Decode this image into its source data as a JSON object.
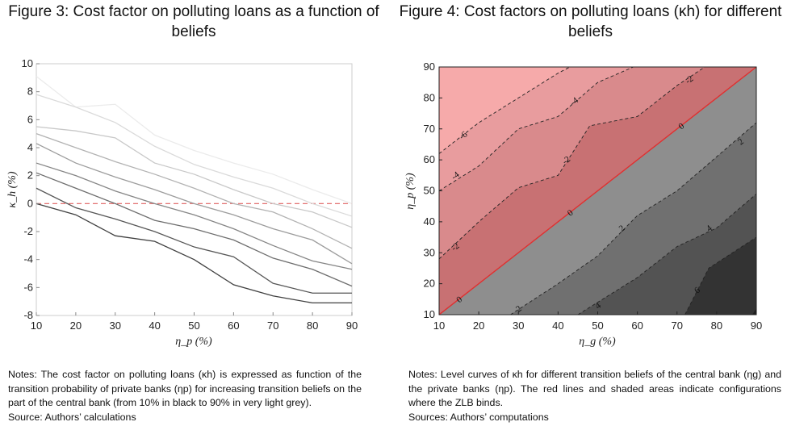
{
  "figure_left": {
    "title": "Figure 3: Cost factor on polluting loans as a function of beliefs",
    "notes": [
      "Notes: The cost factor on polluting loans (κh) is expressed as function of the transition probability of private banks (ηp) for increasing transition beliefs on the part of the central bank (from 10% in black to 90% in very light grey).",
      "Source: Authors’ calculations"
    ]
  },
  "figure_right": {
    "title": "Figure 4: Cost factors on polluting loans (κh) for different beliefs",
    "notes": [
      "Notes: Level curves of κh for different transition beliefs of the central bank (ηg) and the private banks (ηp). The red lines and shaded areas indicate configurations where the ZLB binds.",
      "Sources: Authors’ computations"
    ]
  },
  "chart_data": [
    {
      "type": "line",
      "xlabel": "η_p (%)",
      "ylabel": "κ_h (%)",
      "xlim": [
        10,
        90
      ],
      "ylim": [
        -8,
        10
      ],
      "x_ticks": [
        10,
        20,
        30,
        40,
        50,
        60,
        70,
        80,
        90
      ],
      "y_ticks": [
        -8,
        -6,
        -4,
        -2,
        0,
        2,
        4,
        6,
        8,
        10
      ],
      "x": [
        10,
        20,
        30,
        40,
        50,
        60,
        70,
        80,
        90
      ],
      "reference_line": {
        "y": 0,
        "color": "#e06060",
        "style": "dashed"
      },
      "series": [
        {
          "color": "#404040",
          "values": [
            0.0,
            -0.8,
            -2.3,
            -2.7,
            -4.0,
            -5.8,
            -6.6,
            -7.1,
            -7.1
          ]
        },
        {
          "color": "#565656",
          "values": [
            1.1,
            -0.3,
            -1.1,
            -2.0,
            -3.1,
            -3.8,
            -5.7,
            -6.4,
            -6.4
          ]
        },
        {
          "color": "#6d6d6d",
          "values": [
            2.2,
            1.1,
            0.0,
            -1.2,
            -1.8,
            -2.6,
            -3.9,
            -4.7,
            -5.9
          ]
        },
        {
          "color": "#858585",
          "values": [
            2.9,
            2.0,
            0.9,
            0.0,
            -0.8,
            -1.8,
            -3.0,
            -4.1,
            -4.7
          ]
        },
        {
          "color": "#9c9c9c",
          "values": [
            4.3,
            2.9,
            1.9,
            1.0,
            0.0,
            -0.8,
            -1.8,
            -2.6,
            -4.3
          ]
        },
        {
          "color": "#b2b2b2",
          "values": [
            5.0,
            4.0,
            3.0,
            2.1,
            1.1,
            0.0,
            -0.6,
            -1.8,
            -3.2
          ]
        },
        {
          "color": "#c8c8c8",
          "values": [
            5.5,
            5.2,
            4.7,
            2.9,
            2.1,
            1.0,
            0.0,
            -0.6,
            -1.7
          ]
        },
        {
          "color": "#dadada",
          "values": [
            7.8,
            6.9,
            5.8,
            4.1,
            2.8,
            1.9,
            1.1,
            0.0,
            -0.9
          ]
        },
        {
          "color": "#ebebeb",
          "values": [
            9.1,
            6.9,
            7.1,
            4.9,
            3.8,
            2.9,
            2.1,
            1.0,
            0.0
          ]
        }
      ]
    },
    {
      "type": "contour",
      "xlabel": "η_g (%)",
      "ylabel": "η_p (%)",
      "xlim": [
        10,
        90
      ],
      "ylim": [
        10,
        90
      ],
      "x_ticks": [
        10,
        20,
        30,
        40,
        50,
        60,
        70,
        80,
        90
      ],
      "y_ticks": [
        10,
        20,
        30,
        40,
        50,
        60,
        70,
        80,
        90
      ],
      "levels": [
        {
          "level": -6,
          "fill": "#f6aaaa",
          "label": "-6",
          "boundary": [
            [
              10,
              62
            ],
            [
              20,
              72
            ],
            [
              30,
              80
            ],
            [
              40,
              88
            ],
            [
              43,
              90
            ]
          ]
        },
        {
          "level": -4,
          "fill": "#e89c9e",
          "label": "-4",
          "boundary": [
            [
              10,
              50
            ],
            [
              20,
              58
            ],
            [
              30,
              70
            ],
            [
              40,
              74
            ],
            [
              50,
              85
            ],
            [
              59,
              90
            ]
          ]
        },
        {
          "level": -2,
          "fill": "#d98a8c",
          "label": "-2",
          "boundary": [
            [
              10,
              28
            ],
            [
              20,
              40
            ],
            [
              30,
              51
            ],
            [
              40,
              55
            ],
            [
              48,
              71
            ],
            [
              60,
              74
            ],
            [
              70,
              84
            ],
            [
              77,
              90
            ]
          ]
        },
        {
          "level": 0,
          "fill": "#c87173",
          "label": "0",
          "boundary": [
            [
              10,
              10
            ],
            [
              90,
              90
            ]
          ],
          "zlb_line_color": "#e03030"
        },
        {
          "level": 2,
          "fill": "#8e8e8e",
          "label": "2",
          "boundary": [
            [
              28,
              10
            ],
            [
              40,
              20
            ],
            [
              50,
              29
            ],
            [
              60,
              42
            ],
            [
              70,
              50
            ],
            [
              80,
              61
            ],
            [
              90,
              72
            ]
          ]
        },
        {
          "level": 4,
          "fill": "#707070",
          "label": "4",
          "boundary": [
            [
              45,
              10
            ],
            [
              60,
              22
            ],
            [
              70,
              32
            ],
            [
              80,
              38
            ],
            [
              90,
              49
            ]
          ]
        },
        {
          "level": 6,
          "fill": "#535353",
          "label": "6",
          "boundary": [
            [
              72,
              10
            ],
            [
              74,
              15
            ],
            [
              78,
              25
            ],
            [
              84,
              30
            ],
            [
              90,
              35
            ]
          ]
        },
        {
          "level": 8,
          "fill": "#333333",
          "label": "",
          "boundary": [
            [
              90,
              12
            ]
          ]
        }
      ],
      "deepest_fill": "#1e1e1e",
      "contour_labels": [
        {
          "text": "-6",
          "x": 16,
          "y": 68
        },
        {
          "text": "-4",
          "x": 14,
          "y": 55
        },
        {
          "text": "-4",
          "x": 44,
          "y": 79
        },
        {
          "text": "-2",
          "x": 14,
          "y": 32
        },
        {
          "text": "-2",
          "x": 42,
          "y": 60
        },
        {
          "text": "-2",
          "x": 73,
          "y": 86
        },
        {
          "text": "0",
          "x": 15,
          "y": 15
        },
        {
          "text": "0",
          "x": 43,
          "y": 43
        },
        {
          "text": "0",
          "x": 71,
          "y": 71
        },
        {
          "text": "2",
          "x": 30,
          "y": 12
        },
        {
          "text": "2",
          "x": 56,
          "y": 38
        },
        {
          "text": "2",
          "x": 86,
          "y": 66
        },
        {
          "text": "4",
          "x": 50,
          "y": 13
        },
        {
          "text": "4",
          "x": 78,
          "y": 38
        },
        {
          "text": "6",
          "x": 75,
          "y": 18
        }
      ]
    }
  ]
}
